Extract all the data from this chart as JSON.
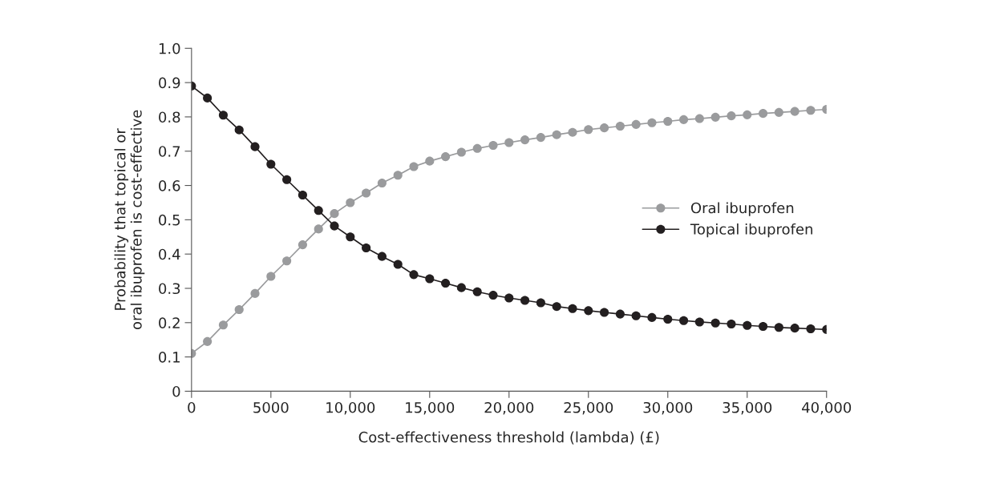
{
  "chart_data": {
    "type": "line",
    "xlabel": "Cost-effectiveness threshold (lambda) (£)",
    "ylabel": "Probability that topical or\noral ibuprofen is cost-effective",
    "x": [
      0,
      1000,
      2000,
      3000,
      4000,
      5000,
      6000,
      7000,
      8000,
      9000,
      10000,
      11000,
      12000,
      13000,
      14000,
      15000,
      16000,
      17000,
      18000,
      19000,
      20000,
      21000,
      22000,
      23000,
      24000,
      25000,
      26000,
      27000,
      28000,
      29000,
      30000,
      31000,
      32000,
      33000,
      34000,
      35000,
      36000,
      37000,
      38000,
      39000,
      40000
    ],
    "series": [
      {
        "name": "Oral ibuprofen",
        "color": "#9a9b9d",
        "values": [
          0.11,
          0.145,
          0.193,
          0.238,
          0.285,
          0.335,
          0.38,
          0.427,
          0.473,
          0.518,
          0.55,
          0.578,
          0.607,
          0.63,
          0.655,
          0.671,
          0.684,
          0.697,
          0.708,
          0.717,
          0.725,
          0.733,
          0.74,
          0.748,
          0.755,
          0.763,
          0.768,
          0.773,
          0.778,
          0.783,
          0.787,
          0.792,
          0.795,
          0.799,
          0.803,
          0.806,
          0.81,
          0.813,
          0.816,
          0.819,
          0.822
        ]
      },
      {
        "name": "Topical ibuprofen",
        "color": "#231f20",
        "values": [
          0.89,
          0.855,
          0.805,
          0.762,
          0.713,
          0.662,
          0.617,
          0.572,
          0.527,
          0.482,
          0.45,
          0.418,
          0.393,
          0.37,
          0.34,
          0.328,
          0.315,
          0.302,
          0.29,
          0.28,
          0.272,
          0.265,
          0.258,
          0.247,
          0.241,
          0.235,
          0.23,
          0.225,
          0.22,
          0.215,
          0.21,
          0.206,
          0.202,
          0.199,
          0.196,
          0.192,
          0.189,
          0.186,
          0.184,
          0.182,
          0.18
        ]
      }
    ],
    "xlim": [
      0,
      40000
    ],
    "xticks": [
      0,
      5000,
      {
        "value": 10000,
        "label": "10,000"
      },
      {
        "value": 15000,
        "label": "15,000"
      },
      {
        "value": 20000,
        "label": "20,000"
      },
      {
        "value": 25000,
        "label": "25,000"
      },
      {
        "value": 30000,
        "label": "30,000"
      },
      {
        "value": 35000,
        "label": "35,000"
      },
      {
        "value": 40000,
        "label": "40,000"
      }
    ],
    "ylim": [
      0,
      1.0
    ],
    "yticks": [
      0,
      0.1,
      0.2,
      0.3,
      0.4,
      0.5,
      0.6,
      0.7,
      0.8,
      0.9,
      {
        "value": 1.0,
        "label": "1.0"
      }
    ],
    "marker": "circle",
    "line_style": "solid",
    "legend": "right",
    "grid": false
  }
}
